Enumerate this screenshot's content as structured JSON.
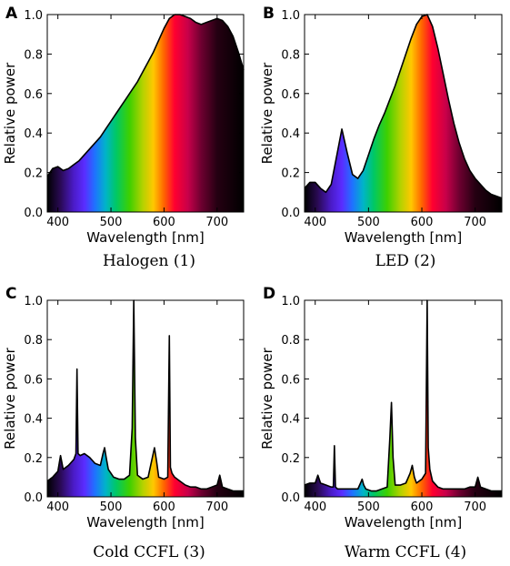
{
  "colors": {
    "outline": "#000000",
    "background": "#ffffff"
  },
  "chart_data": [
    {
      "type": "area",
      "panel_letter": "A",
      "caption": "Halogen (1)",
      "xlabel": "Wavelength [nm]",
      "ylabel": "Relative power",
      "xlim": [
        380,
        750
      ],
      "ylim": [
        0,
        1
      ],
      "x_ticks": [
        400,
        500,
        600,
        700
      ],
      "y_ticks": [
        0.0,
        0.2,
        0.4,
        0.6,
        0.8,
        1.0
      ],
      "fill": "spectral-gradient",
      "grid": false,
      "x": [
        380,
        390,
        400,
        410,
        420,
        430,
        440,
        450,
        460,
        470,
        480,
        490,
        500,
        510,
        520,
        530,
        540,
        550,
        560,
        570,
        580,
        590,
        600,
        610,
        620,
        630,
        640,
        650,
        660,
        670,
        680,
        690,
        700,
        710,
        720,
        730,
        740,
        750
      ],
      "values": [
        0.18,
        0.22,
        0.23,
        0.21,
        0.22,
        0.24,
        0.26,
        0.29,
        0.32,
        0.35,
        0.38,
        0.42,
        0.46,
        0.5,
        0.54,
        0.58,
        0.62,
        0.66,
        0.71,
        0.76,
        0.81,
        0.87,
        0.93,
        0.98,
        1.0,
        1.0,
        0.99,
        0.98,
        0.96,
        0.95,
        0.96,
        0.97,
        0.98,
        0.97,
        0.94,
        0.89,
        0.81,
        0.72
      ]
    },
    {
      "type": "area",
      "panel_letter": "B",
      "caption": "LED (2)",
      "xlabel": "Wavelength [nm]",
      "ylabel": "Relative power",
      "xlim": [
        380,
        750
      ],
      "ylim": [
        0,
        1
      ],
      "x_ticks": [
        400,
        500,
        600,
        700
      ],
      "y_ticks": [
        0.0,
        0.2,
        0.4,
        0.6,
        0.8,
        1.0
      ],
      "fill": "spectral-gradient",
      "grid": false,
      "x": [
        380,
        390,
        400,
        410,
        420,
        430,
        440,
        450,
        460,
        470,
        480,
        490,
        500,
        510,
        520,
        530,
        540,
        550,
        560,
        570,
        580,
        590,
        600,
        610,
        620,
        630,
        640,
        650,
        660,
        670,
        680,
        690,
        700,
        710,
        720,
        730,
        740,
        750
      ],
      "values": [
        0.12,
        0.15,
        0.15,
        0.12,
        0.1,
        0.14,
        0.28,
        0.42,
        0.3,
        0.19,
        0.17,
        0.21,
        0.29,
        0.37,
        0.44,
        0.5,
        0.57,
        0.64,
        0.72,
        0.8,
        0.88,
        0.95,
        0.99,
        1.0,
        0.94,
        0.83,
        0.7,
        0.57,
        0.45,
        0.35,
        0.27,
        0.21,
        0.17,
        0.14,
        0.11,
        0.09,
        0.08,
        0.07
      ]
    },
    {
      "type": "area",
      "panel_letter": "C",
      "caption": "Cold CCFL (3)",
      "xlabel": "Wavelength [nm]",
      "ylabel": "Relative power",
      "xlim": [
        380,
        750
      ],
      "ylim": [
        0,
        1
      ],
      "x_ticks": [
        400,
        500,
        600,
        700
      ],
      "y_ticks": [
        0.0,
        0.2,
        0.4,
        0.6,
        0.8,
        1.0
      ],
      "fill": "spectral-gradient",
      "grid": false,
      "x": [
        380,
        390,
        400,
        405,
        410,
        420,
        430,
        434,
        436,
        438,
        442,
        450,
        460,
        470,
        480,
        485,
        488,
        491,
        495,
        505,
        515,
        525,
        535,
        540,
        543,
        546,
        550,
        560,
        570,
        578,
        582,
        586,
        590,
        600,
        607,
        610,
        612,
        615,
        620,
        630,
        640,
        650,
        660,
        670,
        680,
        690,
        700,
        705,
        710,
        720,
        730,
        740,
        750
      ],
      "values": [
        0.08,
        0.1,
        0.13,
        0.21,
        0.14,
        0.16,
        0.19,
        0.22,
        0.65,
        0.22,
        0.21,
        0.22,
        0.2,
        0.17,
        0.16,
        0.22,
        0.25,
        0.2,
        0.14,
        0.1,
        0.09,
        0.09,
        0.11,
        0.35,
        1.0,
        0.3,
        0.11,
        0.09,
        0.1,
        0.2,
        0.25,
        0.18,
        0.1,
        0.09,
        0.1,
        0.82,
        0.15,
        0.12,
        0.1,
        0.08,
        0.06,
        0.05,
        0.05,
        0.04,
        0.04,
        0.05,
        0.06,
        0.11,
        0.05,
        0.04,
        0.03,
        0.03,
        0.03
      ]
    },
    {
      "type": "area",
      "panel_letter": "D",
      "caption": "Warm CCFL (4)",
      "xlabel": "Wavelength [nm]",
      "ylabel": "Relative power",
      "xlim": [
        380,
        750
      ],
      "ylim": [
        0,
        1
      ],
      "x_ticks": [
        400,
        500,
        600,
        700
      ],
      "y_ticks": [
        0.0,
        0.2,
        0.4,
        0.6,
        0.8,
        1.0
      ],
      "fill": "spectral-gradient",
      "grid": false,
      "x": [
        380,
        390,
        400,
        405,
        410,
        420,
        430,
        434,
        436,
        438,
        442,
        450,
        460,
        470,
        480,
        485,
        488,
        491,
        495,
        505,
        515,
        525,
        535,
        540,
        543,
        546,
        550,
        560,
        570,
        578,
        582,
        586,
        590,
        600,
        607,
        610,
        612,
        615,
        620,
        630,
        640,
        650,
        660,
        670,
        680,
        690,
        700,
        705,
        710,
        720,
        730,
        740,
        750
      ],
      "values": [
        0.06,
        0.07,
        0.07,
        0.11,
        0.07,
        0.06,
        0.05,
        0.05,
        0.26,
        0.05,
        0.04,
        0.04,
        0.04,
        0.04,
        0.04,
        0.07,
        0.09,
        0.06,
        0.04,
        0.03,
        0.03,
        0.04,
        0.05,
        0.3,
        0.48,
        0.2,
        0.06,
        0.06,
        0.07,
        0.12,
        0.16,
        0.1,
        0.07,
        0.09,
        0.12,
        1.0,
        0.25,
        0.14,
        0.08,
        0.05,
        0.04,
        0.04,
        0.04,
        0.04,
        0.04,
        0.05,
        0.05,
        0.1,
        0.05,
        0.04,
        0.03,
        0.03,
        0.03
      ]
    }
  ]
}
